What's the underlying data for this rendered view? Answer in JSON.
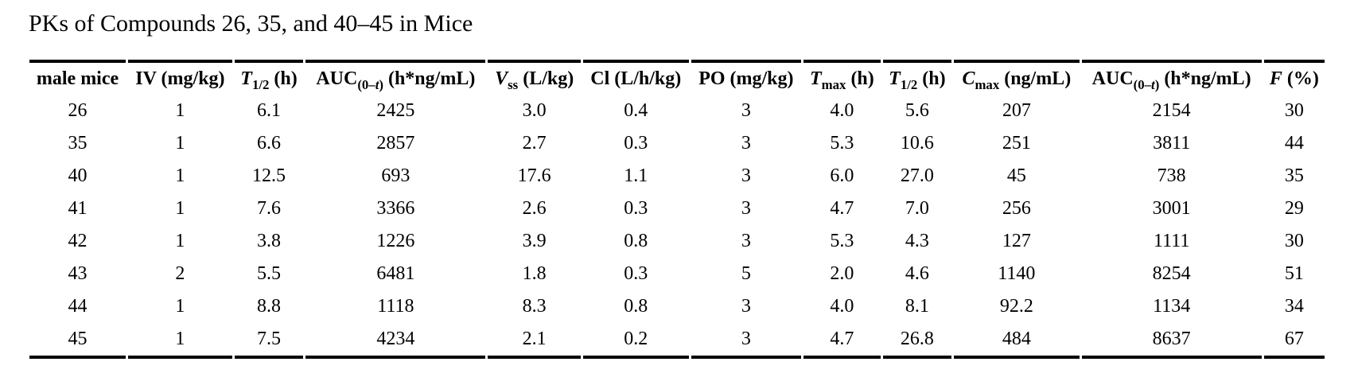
{
  "page": {
    "title": "PKs of Compounds 26, 35, and 40–45 in Mice"
  },
  "table": {
    "columns": [
      {
        "id": "male-mice",
        "parts": [
          {
            "t": "male mice"
          }
        ]
      },
      {
        "id": "iv-dose",
        "parts": [
          {
            "t": "IV (mg/kg)"
          }
        ]
      },
      {
        "id": "t-half-iv",
        "parts": [
          {
            "t": "T",
            "s": "i"
          },
          {
            "t": "1/2",
            "s": "sub"
          },
          {
            "t": " (h)"
          }
        ]
      },
      {
        "id": "auc-iv",
        "parts": [
          {
            "t": "AUC"
          },
          {
            "t": "(0–",
            "s": "sub"
          },
          {
            "t": "t",
            "s": "subi"
          },
          {
            "t": ")",
            "s": "sub"
          },
          {
            "t": " (h*ng/mL)"
          }
        ]
      },
      {
        "id": "vss",
        "parts": [
          {
            "t": "V",
            "s": "i"
          },
          {
            "t": "ss",
            "s": "sub"
          },
          {
            "t": " (L/kg)"
          }
        ]
      },
      {
        "id": "cl",
        "parts": [
          {
            "t": "Cl (L/h/kg)"
          }
        ]
      },
      {
        "id": "po-dose",
        "parts": [
          {
            "t": "PO (mg/kg)"
          }
        ]
      },
      {
        "id": "t-max",
        "parts": [
          {
            "t": "T",
            "s": "i"
          },
          {
            "t": "max",
            "s": "sub"
          },
          {
            "t": " (h)"
          }
        ]
      },
      {
        "id": "t-half-po",
        "parts": [
          {
            "t": "T",
            "s": "i"
          },
          {
            "t": "1/2",
            "s": "sub"
          },
          {
            "t": " (h)"
          }
        ]
      },
      {
        "id": "c-max",
        "parts": [
          {
            "t": "C",
            "s": "i"
          },
          {
            "t": "max",
            "s": "sub"
          },
          {
            "t": " (ng/mL)"
          }
        ]
      },
      {
        "id": "auc-po",
        "parts": [
          {
            "t": "AUC"
          },
          {
            "t": "(0–",
            "s": "sub"
          },
          {
            "t": "t",
            "s": "subi"
          },
          {
            "t": ")",
            "s": "sub"
          },
          {
            "t": " (h*ng/mL)"
          }
        ]
      },
      {
        "id": "f-percent",
        "parts": [
          {
            "t": "F",
            "s": "i"
          },
          {
            "t": " (%)"
          }
        ]
      }
    ],
    "rows": [
      {
        "compound": "26",
        "values": [
          "1",
          "6.1",
          "2425",
          "3.0",
          "0.4",
          "3",
          "4.0",
          "5.6",
          "207",
          "2154",
          "30"
        ]
      },
      {
        "compound": "35",
        "values": [
          "1",
          "6.6",
          "2857",
          "2.7",
          "0.3",
          "3",
          "5.3",
          "10.6",
          "251",
          "3811",
          "44"
        ]
      },
      {
        "compound": "40",
        "values": [
          "1",
          "12.5",
          "693",
          "17.6",
          "1.1",
          "3",
          "6.0",
          "27.0",
          "45",
          "738",
          "35"
        ]
      },
      {
        "compound": "41",
        "values": [
          "1",
          "7.6",
          "3366",
          "2.6",
          "0.3",
          "3",
          "4.7",
          "7.0",
          "256",
          "3001",
          "29"
        ]
      },
      {
        "compound": "42",
        "values": [
          "1",
          "3.8",
          "1226",
          "3.9",
          "0.8",
          "3",
          "5.3",
          "4.3",
          "127",
          "1111",
          "30"
        ]
      },
      {
        "compound": "43",
        "values": [
          "2",
          "5.5",
          "6481",
          "1.8",
          "0.3",
          "5",
          "2.0",
          "4.6",
          "1140",
          "8254",
          "51"
        ]
      },
      {
        "compound": "44",
        "values": [
          "1",
          "8.8",
          "1118",
          "8.3",
          "0.8",
          "3",
          "4.0",
          "8.1",
          "92.2",
          "1134",
          "34"
        ]
      },
      {
        "compound": "45",
        "values": [
          "1",
          "7.5",
          "4234",
          "2.1",
          "0.2",
          "3",
          "4.7",
          "26.8",
          "484",
          "8637",
          "67"
        ]
      }
    ]
  }
}
